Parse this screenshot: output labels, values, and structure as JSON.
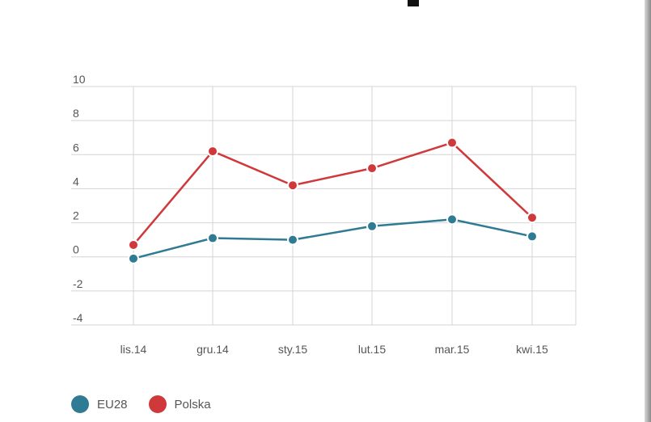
{
  "chart_data": {
    "type": "line",
    "categories": [
      "lis.14",
      "gru.14",
      "sty.15",
      "lut.15",
      "mar.15",
      "kwi.15"
    ],
    "series": [
      {
        "name": "EU28",
        "color": "#2e7b93",
        "values": [
          -0.1,
          1.1,
          1.0,
          1.8,
          2.2,
          1.2
        ]
      },
      {
        "name": "Polska",
        "color": "#d0393b",
        "values": [
          0.7,
          6.2,
          4.2,
          5.2,
          6.7,
          2.3
        ]
      }
    ],
    "yticks": [
      "10",
      "8",
      "6",
      "4",
      "2",
      "0",
      "-2",
      "-4"
    ],
    "ylim": [
      -4,
      10
    ],
    "grid": true,
    "legend_position": "bottom-left",
    "title": "",
    "xlabel": "",
    "ylabel": ""
  }
}
